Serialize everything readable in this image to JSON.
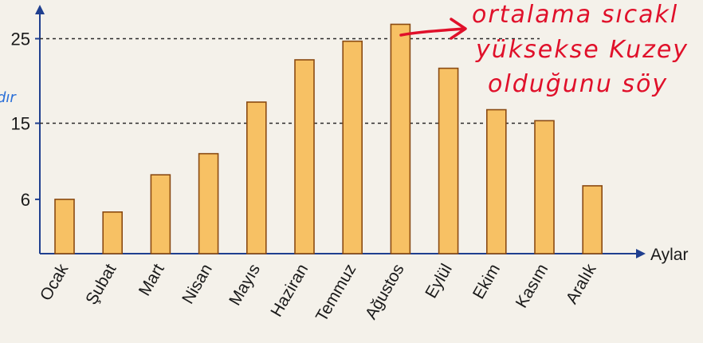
{
  "chart_data": {
    "type": "bar",
    "xlabel": "Aylar",
    "ylabel": "",
    "categories": [
      "Ocak",
      "Şubat",
      "Mart",
      "Nisan",
      "Mayıs",
      "Haziran",
      "Temmuz",
      "Ağustos",
      "Eylül",
      "Ekim",
      "Kasım",
      "Aralık"
    ],
    "values": [
      6,
      4.5,
      8.9,
      11.4,
      17.5,
      22.5,
      24.7,
      26.7,
      21.5,
      16.6,
      15.3,
      7.6
    ],
    "yticks": [
      "6",
      "15",
      "25"
    ],
    "ytick_values": [
      6,
      15,
      25
    ],
    "reference_lines": [
      15,
      25
    ],
    "ylim": [
      0,
      28
    ],
    "grid": false,
    "bar_color": "#f7c164",
    "bar_edge_color": "#8a4a12"
  },
  "annotations": {
    "handwriting_lines": [
      "ortalama sıcakl",
      "yüksekse Kuzey",
      "olduğunu   söy"
    ],
    "margin_note": "dır",
    "ink_color": "#e0102a"
  }
}
